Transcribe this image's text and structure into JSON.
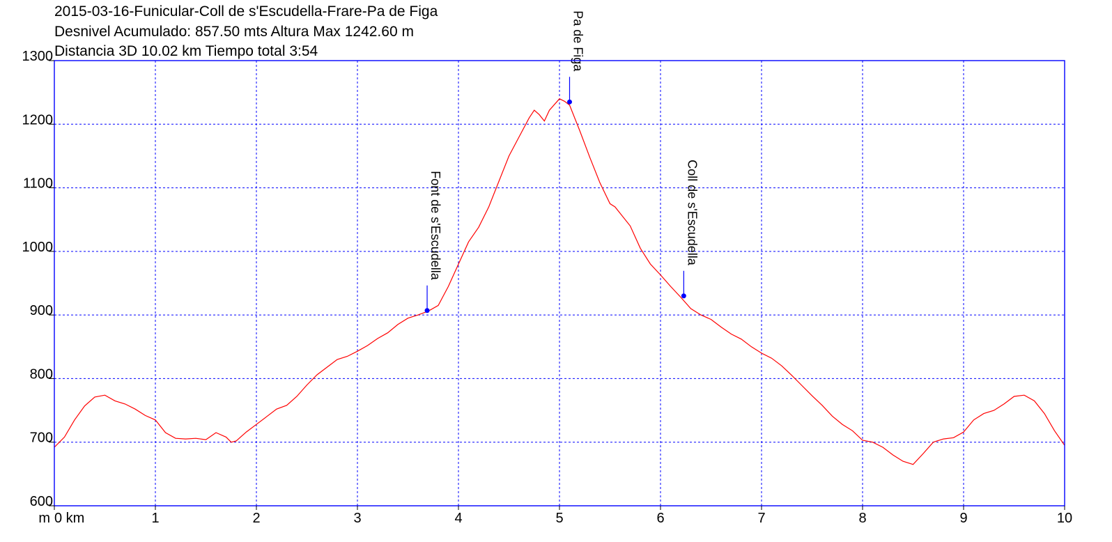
{
  "chart_data": {
    "type": "line",
    "title_lines": [
      "2015-03-16-Funicular-Coll de s'Escudella-Frare-Pa de Figa",
      "Desnivel Acumulado: 857.50 mts  Altura Max 1242.60 m",
      "Distancia 3D 10.02 km  Tiempo total 3:54"
    ],
    "y_unit_label": "m",
    "xlim": [
      0,
      10
    ],
    "ylim": [
      600,
      1300
    ],
    "x_ticks": [
      0,
      1,
      2,
      3,
      4,
      5,
      6,
      7,
      8,
      9,
      10
    ],
    "x_tick_labels": [
      "0 km",
      "1",
      "2",
      "3",
      "4",
      "5",
      "6",
      "7",
      "8",
      "9",
      "10"
    ],
    "y_ticks": [
      600,
      700,
      800,
      900,
      1000,
      1100,
      1200,
      1300
    ],
    "y_tick_labels": [
      "600",
      "700",
      "800",
      "900",
      "1000",
      "1100",
      "1200",
      "1300"
    ],
    "grid": true,
    "series": [
      {
        "color": "#ff0000",
        "x": [
          0,
          0.1,
          0.2,
          0.3,
          0.4,
          0.5,
          0.6,
          0.7,
          0.8,
          0.9,
          1.0,
          1.1,
          1.2,
          1.3,
          1.4,
          1.5,
          1.6,
          1.7,
          1.75,
          1.8,
          1.9,
          2.0,
          2.1,
          2.2,
          2.3,
          2.4,
          2.5,
          2.6,
          2.7,
          2.8,
          2.9,
          3.0,
          3.1,
          3.2,
          3.3,
          3.4,
          3.5,
          3.6,
          3.7,
          3.8,
          3.9,
          4.0,
          4.1,
          4.2,
          4.3,
          4.4,
          4.5,
          4.6,
          4.7,
          4.75,
          4.8,
          4.85,
          4.9,
          5.0,
          5.05,
          5.1,
          5.2,
          5.3,
          5.4,
          5.5,
          5.55,
          5.6,
          5.7,
          5.8,
          5.9,
          6.0,
          6.1,
          6.2,
          6.3,
          6.4,
          6.5,
          6.6,
          6.7,
          6.8,
          6.9,
          7.0,
          7.1,
          7.2,
          7.3,
          7.4,
          7.5,
          7.6,
          7.7,
          7.8,
          7.9,
          8.0,
          8.1,
          8.2,
          8.3,
          8.4,
          8.5,
          8.6,
          8.7,
          8.8,
          8.9,
          9.0,
          9.1,
          9.2,
          9.3,
          9.4,
          9.5,
          9.6,
          9.7,
          9.8,
          9.9,
          10.0
        ],
        "y": [
          692,
          708,
          735,
          757,
          771,
          774,
          765,
          760,
          752,
          742,
          735,
          715,
          706,
          705,
          706,
          704,
          715,
          708,
          700,
          702,
          716,
          728,
          740,
          752,
          758,
          772,
          790,
          806,
          818,
          830,
          835,
          843,
          852,
          863,
          872,
          885,
          895,
          900,
          906,
          915,
          945,
          980,
          1015,
          1038,
          1070,
          1110,
          1150,
          1180,
          1210,
          1222,
          1215,
          1205,
          1222,
          1240,
          1236,
          1230,
          1190,
          1148,
          1108,
          1075,
          1070,
          1060,
          1040,
          1005,
          980,
          963,
          945,
          928,
          910,
          900,
          893,
          881,
          870,
          862,
          850,
          840,
          832,
          820,
          805,
          789,
          773,
          758,
          741,
          728,
          718,
          703,
          700,
          692,
          680,
          670,
          665,
          682,
          700,
          705,
          707,
          716,
          735,
          745,
          750,
          760,
          772,
          774,
          765,
          745,
          718,
          695
        ]
      }
    ],
    "waypoints": [
      {
        "x": 3.69,
        "y": 907,
        "label": "Font de s'Escudella"
      },
      {
        "x": 5.1,
        "y": 1235,
        "label": "Pa de Figa"
      },
      {
        "x": 6.23,
        "y": 930,
        "label": "Coll de s'Escudella"
      }
    ],
    "colors": {
      "axes_frame": "#0000ff",
      "grid": "#0000ff",
      "line": "#ff0000",
      "waypoint": "#0000ff"
    }
  }
}
